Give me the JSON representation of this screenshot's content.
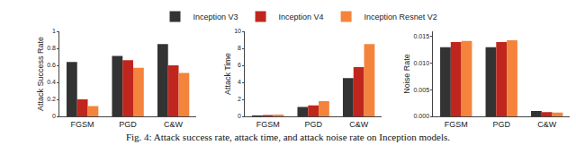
{
  "chart_data": [
    {
      "type": "bar",
      "y_label": "Attack Success Rate",
      "categories": [
        "FGSM",
        "PGD",
        "C&W"
      ],
      "series": [
        {
          "name": "Inception V3",
          "color": "#333333",
          "values": [
            0.64,
            0.71,
            0.85
          ]
        },
        {
          "name": "Inception V4",
          "color": "#c0261e",
          "values": [
            0.2,
            0.66,
            0.6
          ]
        },
        {
          "name": "Inception Resnet V2",
          "color": "#f4843c",
          "values": [
            0.12,
            0.57,
            0.51
          ]
        }
      ],
      "ylim": [
        0,
        1
      ],
      "yticks": [
        0,
        0.2,
        0.4,
        0.6,
        0.8,
        1
      ],
      "grid": false,
      "legend": "top"
    },
    {
      "type": "bar",
      "y_label": "Attack Time",
      "categories": [
        "FGSM",
        "PGD",
        "C&W"
      ],
      "series": [
        {
          "name": "Inception V3",
          "color": "#333333",
          "values": [
            0.1,
            1.1,
            4.5
          ]
        },
        {
          "name": "Inception V4",
          "color": "#c0261e",
          "values": [
            0.15,
            1.3,
            5.8
          ]
        },
        {
          "name": "Inception Resnet V2",
          "color": "#f4843c",
          "values": [
            0.2,
            1.8,
            8.5
          ]
        }
      ],
      "ylim": [
        0,
        10
      ],
      "yticks": [
        0,
        2,
        4,
        6,
        8,
        10
      ],
      "grid": false
    },
    {
      "type": "bar",
      "y_label": "Noise Rate",
      "categories": [
        "FGSM",
        "PGD",
        "C&W"
      ],
      "series": [
        {
          "name": "Inception V3",
          "color": "#333333",
          "values": [
            0.013,
            0.013,
            0.001
          ]
        },
        {
          "name": "Inception V4",
          "color": "#c0261e",
          "values": [
            0.014,
            0.014,
            0.0008
          ]
        },
        {
          "name": "Inception Resnet V2",
          "color": "#f4843c",
          "values": [
            0.0142,
            0.0143,
            0.0007
          ]
        }
      ],
      "ylim": [
        0,
        0.016
      ],
      "yticks": [
        {
          "value": 0,
          "label": "0.000"
        },
        {
          "value": 0.005,
          "label": "0.005"
        },
        {
          "value": 0.01,
          "label": "0.010"
        },
        {
          "value": 0.015,
          "label": "0.015"
        }
      ],
      "grid": false
    }
  ],
  "caption": "Fig. 4: Attack success rate, attack time, and attack noise rate on Inception models."
}
